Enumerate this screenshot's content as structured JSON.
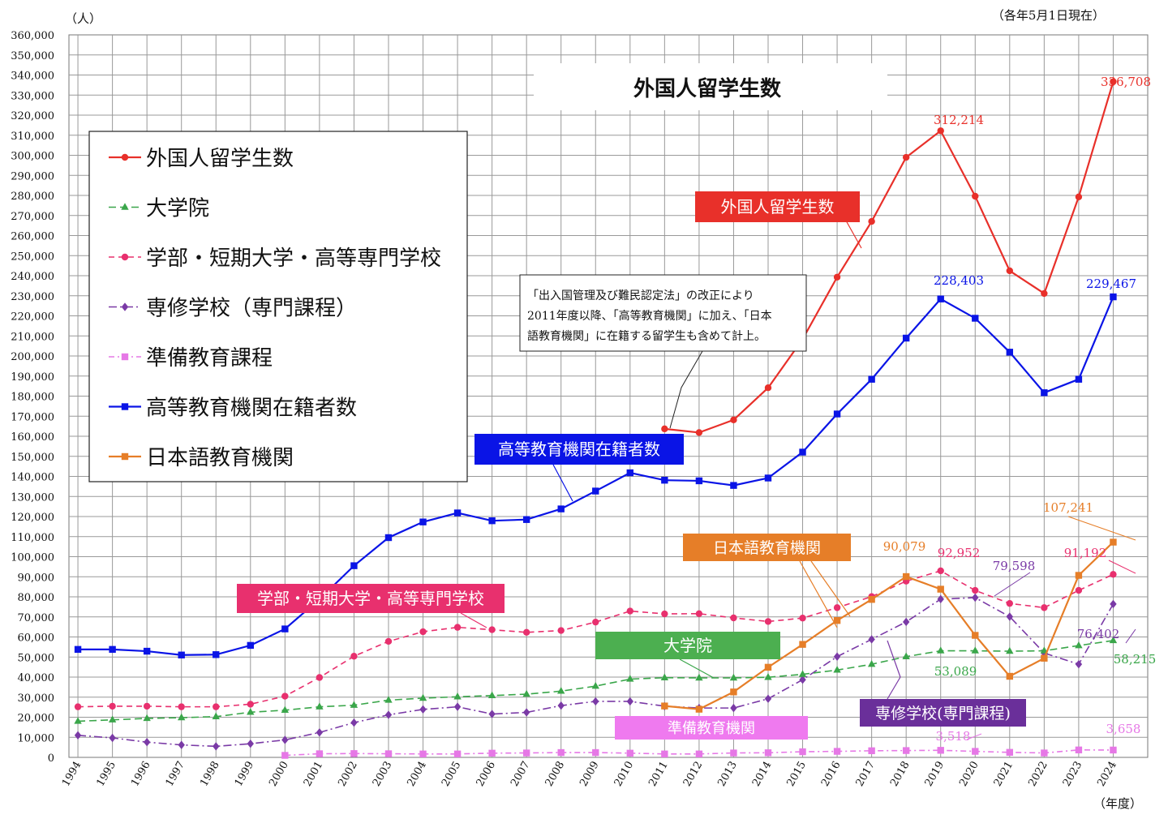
{
  "chart_data": {
    "type": "line",
    "title": "外国人留学生数",
    "y_unit_label": "（人）",
    "note_top_right": "（各年5月1日現在）",
    "xlabel": "（年度）",
    "ylim": [
      0,
      360000
    ],
    "ytick_step": 10000,
    "grid": true,
    "legend_placement": "top-left",
    "x": [
      1994,
      1995,
      1996,
      1997,
      1998,
      1999,
      2000,
      2001,
      2002,
      2003,
      2004,
      2005,
      2006,
      2007,
      2008,
      2009,
      2010,
      2011,
      2012,
      2013,
      2014,
      2015,
      2016,
      2017,
      2018,
      2019,
      2020,
      2021,
      2022,
      2023,
      2024
    ],
    "series": [
      {
        "name": "外国人留学生数",
        "color": "#e8302a",
        "dash": "",
        "marker": "circle",
        "values": [
          null,
          null,
          null,
          null,
          null,
          null,
          null,
          null,
          null,
          null,
          null,
          null,
          null,
          null,
          null,
          null,
          null,
          163697,
          161848,
          168145,
          184155,
          208379,
          239287,
          267042,
          298980,
          312214,
          279597,
          242444,
          231146,
          279274,
          336708
        ]
      },
      {
        "name": "大学院",
        "color": "#3aa64a",
        "dash": "9,5",
        "marker": "triangle",
        "values": [
          18000,
          18700,
          19400,
          19800,
          20300,
          22500,
          23500,
          25200,
          26000,
          28500,
          29500,
          30200,
          30800,
          31500,
          33000,
          35500,
          39000,
          39700,
          39600,
          39600,
          39900,
          41400,
          43500,
          46400,
          50200,
          53089,
          53100,
          52900,
          53100,
          55700,
          58215
        ]
      },
      {
        "name": "学部・短期大学・高等専門学校",
        "color": "#e8306e",
        "dash": "7,5",
        "marker": "circle",
        "values": [
          25200,
          25500,
          25500,
          25200,
          25200,
          26500,
          30500,
          39800,
          50400,
          57800,
          62600,
          64800,
          63600,
          62300,
          63200,
          67400,
          72900,
          71500,
          71600,
          69500,
          67700,
          69400,
          74600,
          80100,
          87800,
          92952,
          83200,
          76700,
          74600,
          83200,
          91192
        ]
      },
      {
        "name": "専修学校（専門課程）",
        "color": "#7a3aa6",
        "dash": "10,4,2,4",
        "marker": "diamond",
        "values": [
          11000,
          9700,
          7600,
          6200,
          5500,
          6800,
          8700,
          12400,
          17300,
          21200,
          23900,
          25200,
          21600,
          22400,
          25800,
          27900,
          27900,
          25500,
          24600,
          24600,
          29200,
          38700,
          50200,
          58800,
          67500,
          78844,
          79598,
          70100,
          52000,
          46400,
          76402
        ]
      },
      {
        "name": "準備教育課程",
        "color": "#e678e6",
        "dash": "7,4,2,4",
        "marker": "square",
        "values": [
          null,
          null,
          null,
          null,
          null,
          null,
          1000,
          1800,
          1900,
          1800,
          1700,
          1700,
          2100,
          2200,
          2400,
          2400,
          2100,
          1700,
          1700,
          2200,
          2300,
          2800,
          3000,
          3300,
          3400,
          3518,
          3000,
          2500,
          2200,
          3700,
          3658
        ]
      },
      {
        "name": "高等教育機関在籍者数",
        "color": "#0a14e6",
        "dash": "",
        "marker": "square",
        "values": [
          53800,
          53800,
          52900,
          51000,
          51200,
          55800,
          64000,
          78800,
          95500,
          109500,
          117300,
          121800,
          117900,
          118500,
          123800,
          132700,
          141800,
          138100,
          137800,
          135500,
          139200,
          152100,
          171100,
          188400,
          208900,
          228403,
          218800,
          201900,
          181700,
          188400,
          229467
        ]
      },
      {
        "name": "日本語教育機関",
        "color": "#e67e28",
        "dash": "",
        "marker": "square",
        "values": [
          null,
          null,
          null,
          null,
          null,
          null,
          null,
          null,
          null,
          null,
          null,
          null,
          null,
          null,
          null,
          null,
          null,
          25600,
          24000,
          32600,
          44900,
          56300,
          68200,
          78700,
          90079,
          83800,
          60800,
          40400,
          49400,
          90700,
          107241
        ]
      }
    ],
    "annotations": {
      "foreign_peak_2019": "312,214",
      "foreign_2024": "336,708",
      "higher_2019": "228,403",
      "higher_2024": "229,467",
      "japanese_2018": "90,079",
      "japanese_2024": "107,241",
      "undergrad_2019": "92,952",
      "undergrad_2024": "91,192",
      "vocational_2020": "79,598",
      "vocational_2024": "76,402",
      "graduate_2019": "53,089",
      "graduate_2024": "58,215",
      "prep_2019": "3,518",
      "prep_2024": "3,658"
    },
    "callouts": {
      "foreign": "外国人留学生数",
      "higher": "高等教育機関在籍者数",
      "undergrad": "学部・短期大学・高等専門学校",
      "graduate": "大学院",
      "japanese": "日本語教育機関",
      "vocational": "専修学校(専門課程)",
      "prep": "準備教育機関"
    },
    "note_box_lines": [
      "「出入国管理及び難民認定法」の改正により",
      "2011年度以降、「高等教育機関」に加え、「日本",
      "語教育機関」に在籍する留学生も含めて計上。"
    ],
    "colors": {
      "foreign": "#e8302a",
      "graduate": "#3aa64a",
      "undergrad": "#e8306e",
      "vocational": "#7a3aa6",
      "prep": "#e678e6",
      "higher": "#0a14e6",
      "japanese": "#e67e28",
      "vocational_box": "#6a2f9a",
      "undergrad_box": "#e8306e",
      "graduate_box": "#4caf50",
      "prep_box": "#ef7aef"
    }
  }
}
